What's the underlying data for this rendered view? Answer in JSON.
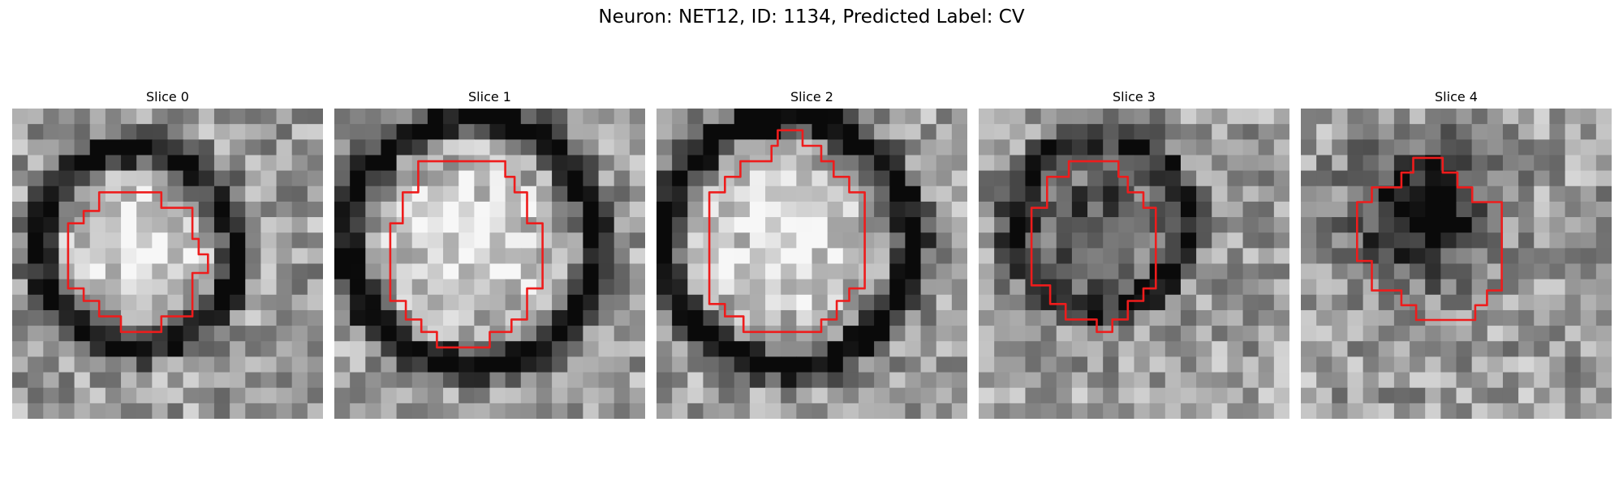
{
  "figure": {
    "title": "Neuron: NET12, ID: 1134, Predicted Label: CV"
  },
  "panels": [
    {
      "label": "Slice 0",
      "seed": 11,
      "ring": 0.62,
      "ringRadius": 6.4,
      "innerBright": 0.9,
      "dark": 0.0,
      "center": [
        8.0,
        9.0
      ],
      "innerRadius": 5.2
    },
    {
      "label": "Slice 1",
      "seed": 23,
      "ring": 0.7,
      "ringRadius": 8.0,
      "innerBright": 0.92,
      "dark": 0.0,
      "center": [
        8.8,
        8.6
      ],
      "innerRadius": 7.0
    },
    {
      "label": "Slice 2",
      "seed": 37,
      "ring": 0.72,
      "ringRadius": 8.0,
      "innerBright": 0.92,
      "dark": 0.0,
      "center": [
        8.4,
        8.6
      ],
      "innerRadius": 7.0
    },
    {
      "label": "Slice 3",
      "seed": 41,
      "ring": 0.45,
      "ringRadius": 5.5,
      "innerBright": 0.35,
      "dark": 0.55,
      "center": [
        7.8,
        7.4
      ],
      "innerRadius": 3.5
    },
    {
      "label": "Slice 4",
      "seed": 53,
      "ring": 0.0,
      "ringRadius": 4.0,
      "innerBright": 0.0,
      "dark": 0.85,
      "center": [
        7.8,
        6.6
      ],
      "innerRadius": 0.0
    }
  ]
}
